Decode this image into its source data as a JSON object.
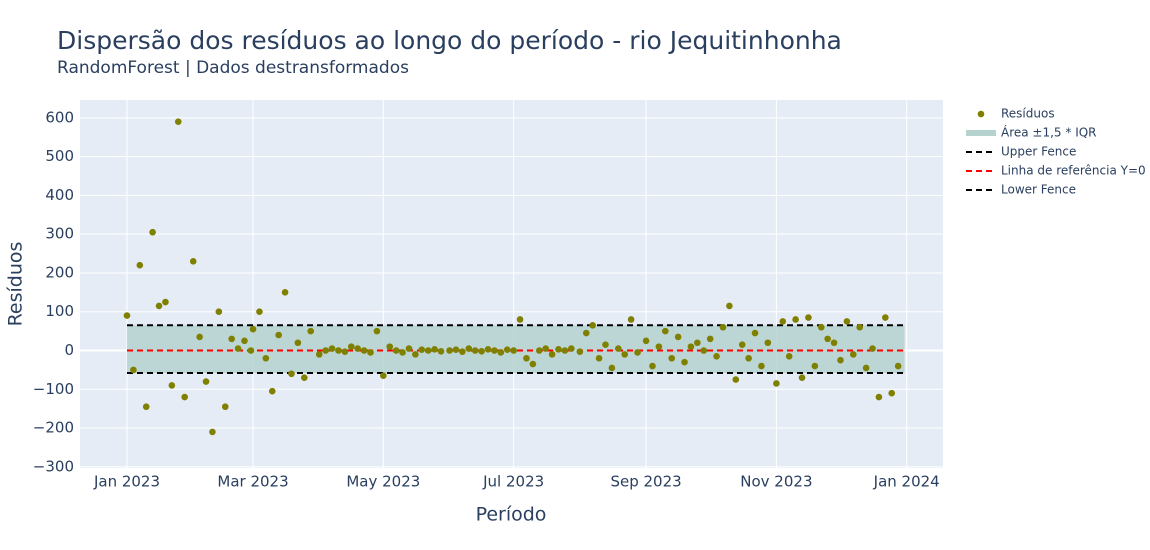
{
  "chart_data": {
    "type": "scatter",
    "title": "Dispersão dos resíduos ao longo do período - rio Jequitinhonha",
    "subtitle": "RandomForest | Dados destransformados",
    "x_label": "Período",
    "y_label": "Resíduos",
    "x": [
      "2023-01-01",
      "2023-01-04",
      "2023-01-07",
      "2023-01-10",
      "2023-01-13",
      "2023-01-16",
      "2023-01-19",
      "2023-01-22",
      "2023-01-25",
      "2023-01-28",
      "2023-02-01",
      "2023-02-04",
      "2023-02-07",
      "2023-02-10",
      "2023-02-13",
      "2023-02-16",
      "2023-02-19",
      "2023-02-22",
      "2023-02-25",
      "2023-02-28",
      "2023-03-01",
      "2023-03-04",
      "2023-03-07",
      "2023-03-10",
      "2023-03-13",
      "2023-03-16",
      "2023-03-19",
      "2023-03-22",
      "2023-03-25",
      "2023-03-28",
      "2023-04-01",
      "2023-04-04",
      "2023-04-07",
      "2023-04-10",
      "2023-04-13",
      "2023-04-16",
      "2023-04-19",
      "2023-04-22",
      "2023-04-25",
      "2023-04-28",
      "2023-05-01",
      "2023-05-04",
      "2023-05-07",
      "2023-05-10",
      "2023-05-13",
      "2023-05-16",
      "2023-05-19",
      "2023-05-22",
      "2023-05-25",
      "2023-05-28",
      "2023-06-01",
      "2023-06-04",
      "2023-06-07",
      "2023-06-10",
      "2023-06-13",
      "2023-06-16",
      "2023-06-19",
      "2023-06-22",
      "2023-06-25",
      "2023-06-28",
      "2023-07-01",
      "2023-07-04",
      "2023-07-07",
      "2023-07-10",
      "2023-07-13",
      "2023-07-16",
      "2023-07-19",
      "2023-07-22",
      "2023-07-25",
      "2023-07-28",
      "2023-08-01",
      "2023-08-04",
      "2023-08-07",
      "2023-08-10",
      "2023-08-13",
      "2023-08-16",
      "2023-08-19",
      "2023-08-22",
      "2023-08-25",
      "2023-08-28",
      "2023-09-01",
      "2023-09-04",
      "2023-09-07",
      "2023-09-10",
      "2023-09-13",
      "2023-09-16",
      "2023-09-19",
      "2023-09-22",
      "2023-09-25",
      "2023-09-28",
      "2023-10-01",
      "2023-10-04",
      "2023-10-07",
      "2023-10-10",
      "2023-10-13",
      "2023-10-16",
      "2023-10-19",
      "2023-10-22",
      "2023-10-25",
      "2023-10-28",
      "2023-11-01",
      "2023-11-04",
      "2023-11-07",
      "2023-11-10",
      "2023-11-13",
      "2023-11-16",
      "2023-11-19",
      "2023-11-22",
      "2023-11-25",
      "2023-11-28",
      "2023-12-01",
      "2023-12-04",
      "2023-12-07",
      "2023-12-10",
      "2023-12-13",
      "2023-12-16",
      "2023-12-19",
      "2023-12-22",
      "2023-12-25",
      "2023-12-28"
    ],
    "series": [
      {
        "name": "Resíduos",
        "color": "#808000",
        "values": [
          90,
          -50,
          220,
          -145,
          305,
          115,
          125,
          -90,
          590,
          -120,
          230,
          35,
          -80,
          -210,
          100,
          -145,
          30,
          5,
          25,
          0,
          55,
          100,
          -20,
          -105,
          40,
          150,
          -60,
          20,
          -70,
          50,
          -10,
          0,
          5,
          0,
          -3,
          10,
          5,
          0,
          -5,
          50,
          -65,
          10,
          0,
          -5,
          5,
          -10,
          2,
          0,
          3,
          -2,
          0,
          2,
          -3,
          5,
          0,
          -2,
          3,
          0,
          -5,
          2,
          0,
          80,
          -20,
          -35,
          0,
          5,
          -10,
          3,
          0,
          5,
          -3,
          45,
          65,
          -20,
          15,
          -45,
          5,
          -10,
          80,
          -5,
          25,
          -40,
          10,
          50,
          -20,
          35,
          -30,
          10,
          20,
          0,
          30,
          -15,
          60,
          115,
          -75,
          15,
          -20,
          45,
          -40,
          20,
          -85,
          75,
          -15,
          80,
          -70,
          85,
          -40,
          60,
          30,
          20,
          -25,
          75,
          -10,
          60,
          -45,
          5,
          -120,
          85,
          -110,
          -40
        ]
      }
    ],
    "span": [
      "2023-01-01",
      "2023-12-31"
    ],
    "band": {
      "name": "Área ±1,5 * IQR",
      "color": "#b5d2cf"
    },
    "lines": [
      {
        "name": "Upper Fence",
        "value": 65,
        "color": "#000000"
      },
      {
        "name": "Linha de referência Y=0",
        "value": 0,
        "color": "#ff0000"
      },
      {
        "name": "Lower Fence",
        "value": -58,
        "color": "#000000"
      }
    ],
    "xlim": [
      "2022-12-10",
      "2024-01-18"
    ],
    "xticks": [
      {
        "value": "2023-01-01",
        "label": "Jan 2023"
      },
      {
        "value": "2023-03-01",
        "label": "Mar 2023"
      },
      {
        "value": "2023-05-01",
        "label": "May 2023"
      },
      {
        "value": "2023-07-01",
        "label": "Jul 2023"
      },
      {
        "value": "2023-09-01",
        "label": "Sep 2023"
      },
      {
        "value": "2023-11-01",
        "label": "Nov 2023"
      },
      {
        "value": "2024-01-01",
        "label": "Jan 2024"
      }
    ],
    "ylim": [
      -303,
      646
    ],
    "yticks": [
      {
        "value": -300,
        "label": "−300"
      },
      {
        "value": -200,
        "label": "−200"
      },
      {
        "value": -100,
        "label": "−100"
      },
      0,
      100,
      200,
      300,
      400,
      500,
      600
    ],
    "grid": true
  }
}
